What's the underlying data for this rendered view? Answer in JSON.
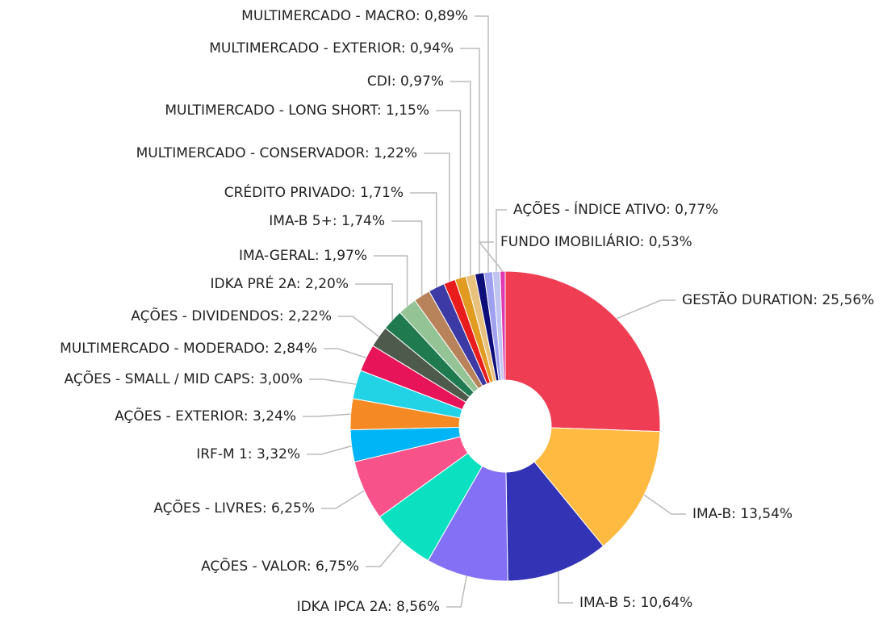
{
  "chart_data": {
    "type": "donut",
    "value_labels": [
      "GESTÃO DURATION: 25,56%",
      "IMA-B: 13,54%",
      "IMA-B 5: 10,64%",
      "IDKA IPCA 2A: 8,56%",
      "AÇÕES - VALOR: 6,75%",
      "AÇÕES - LIVRES: 6,25%",
      "IRF-M 1: 3,32%",
      "AÇÕES - EXTERIOR: 3,24%",
      "AÇÕES - SMALL / MID CAPS: 3,00%",
      "MULTIMERCADO - MODERADO: 2,84%",
      "AÇÕES - DIVIDENDOS: 2,22%",
      "IDKA PRÉ 2A: 2,20%",
      "IMA-GERAL: 1,97%",
      "IMA-B 5+: 1,74%",
      "CRÉDITO PRIVADO: 1,71%",
      "MULTIMERCADO - CONSERVADOR: 1,22%",
      "MULTIMERCADO - LONG SHORT: 1,15%",
      "CDI: 0,97%",
      "MULTIMERCADO - EXTERIOR: 0,94%",
      "MULTIMERCADO - MACRO: 0,89%",
      "AÇÕES - ÍNDICE ATIVO: 0,77%",
      "FUNDO IMOBILIÁRIO: 0,53%"
    ],
    "values": [
      25.56,
      13.54,
      10.64,
      8.56,
      6.75,
      6.25,
      3.32,
      3.24,
      3.0,
      2.84,
      2.22,
      2.2,
      1.97,
      1.74,
      1.71,
      1.22,
      1.15,
      0.97,
      0.94,
      0.89,
      0.77,
      0.53
    ],
    "colors": [
      "#ef3e54",
      "#ffba42",
      "#3333b5",
      "#8370f5",
      "#0be0c0",
      "#f7538a",
      "#00b5f5",
      "#f58a25",
      "#22d3e6",
      "#e8145a",
      "#4d5a4c",
      "#1f7a50",
      "#94c495",
      "#b8825a",
      "#3d3aa5",
      "#e81c1c",
      "#e09b20",
      "#e8c27d",
      "#0e0e7a",
      "#a0a0f0",
      "#c0c4f0",
      "#e03ab0"
    ]
  }
}
